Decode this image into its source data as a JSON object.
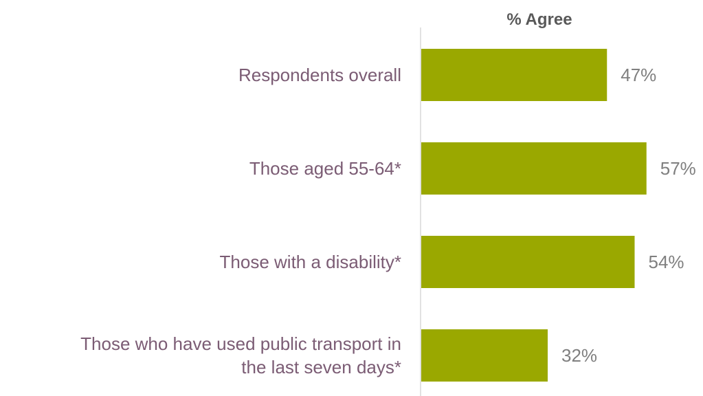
{
  "chart_data": {
    "type": "bar",
    "orientation": "horizontal",
    "title": "% Agree",
    "categories": [
      [
        "Respondents overall"
      ],
      [
        "Those aged 55-64*"
      ],
      [
        "Those with a disability*"
      ],
      [
        "Those who have used public transport in",
        "the last seven days*"
      ]
    ],
    "values": [
      47,
      57,
      54,
      32
    ],
    "value_labels": [
      "47%",
      "57%",
      "54%",
      "32%"
    ],
    "xlim": [
      0,
      100
    ],
    "grid": false,
    "legend": "none",
    "colors": {
      "bar": "#9aa800",
      "category_text": "#7b5c74",
      "value_text": "#7f7f7f",
      "title_text": "#595959",
      "axis_line": "#d9d9d9"
    }
  }
}
